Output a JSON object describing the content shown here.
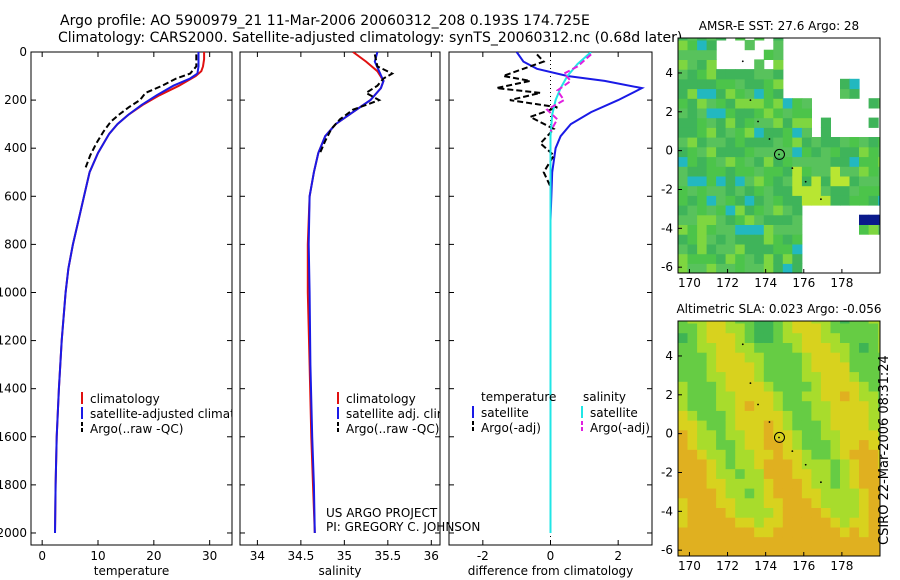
{
  "header": {
    "title_line1": "Argo profile: AO 5900979_21 11-Mar-2006 20060312_208 0.193S 174.725E",
    "title_line2": "Climatology: CARS2000. Satellite-adjusted climatology: synTS_20060312.nc (0.68d later)"
  },
  "footer_stamp": "CSIRO 22-Mar-2006 08:31:24",
  "credit": {
    "line1": "US ARGO PROJECT",
    "line2": "PI: GREGORY C. JOHNSON"
  },
  "colors": {
    "climatology": "#e01010",
    "satellite": "#1a1ae6",
    "argo": "#000000",
    "satellite_salinity": "#20e6e6",
    "argo_salinity": "#e020e0"
  },
  "chart_data": [
    {
      "type": "line",
      "id": "temperature",
      "xlabel": "temperature",
      "ylabel": "",
      "xlim": [
        -2,
        34
      ],
      "ylim": [
        2050,
        0
      ],
      "xticks": [
        0,
        10,
        20,
        30
      ],
      "yticks": [
        0,
        200,
        400,
        600,
        800,
        1000,
        1200,
        1400,
        1600,
        1800,
        2000
      ],
      "legend": {
        "placement": "lower-right",
        "entries": [
          "climatology",
          "satellite-adjusted climatology",
          "Argo(..raw -QC)"
        ]
      },
      "series": [
        {
          "name": "climatology",
          "color": "#e01010",
          "dash": "none",
          "x": [
            29.0,
            29.0,
            28.8,
            28.5,
            27.5,
            24.5,
            21.0,
            18.0,
            15.5,
            13.5,
            12.0,
            10.0,
            8.5,
            7.5,
            6.5,
            5.5,
            4.7,
            4.2,
            3.5,
            3.0,
            2.6,
            2.4,
            2.3
          ],
          "y": [
            0,
            30,
            60,
            80,
            100,
            140,
            180,
            220,
            260,
            300,
            340,
            420,
            500,
            600,
            700,
            800,
            900,
            1000,
            1200,
            1400,
            1600,
            1800,
            2000
          ]
        },
        {
          "name": "satellite-adjusted climatology",
          "color": "#1a1ae6",
          "dash": "none",
          "x": [
            28.0,
            28.0,
            27.8,
            26.5,
            23.5,
            20.5,
            17.8,
            15.5,
            13.5,
            12.0,
            10.0,
            8.5,
            7.5,
            6.5,
            5.5,
            4.7,
            4.2,
            3.5,
            3.0,
            2.6,
            2.4,
            2.3
          ],
          "y": [
            0,
            60,
            90,
            110,
            140,
            180,
            220,
            260,
            300,
            340,
            420,
            500,
            600,
            700,
            800,
            900,
            1000,
            1200,
            1400,
            1600,
            1800,
            2000
          ]
        },
        {
          "name": "Argo(..raw -QC)",
          "color": "#000000",
          "dash": "6,3",
          "x": [
            27.6,
            27.6,
            26.5,
            24.0,
            21.5,
            18.5,
            17.5,
            15.5,
            13.8,
            12.3,
            11.0,
            9.7,
            8.6,
            7.8
          ],
          "y": [
            10,
            60,
            90,
            110,
            140,
            170,
            200,
            230,
            260,
            290,
            330,
            380,
            430,
            480
          ]
        }
      ]
    },
    {
      "type": "line",
      "id": "salinity",
      "xlabel": "salinity",
      "ylabel": "",
      "xlim": [
        33.8,
        36.1
      ],
      "ylim": [
        2050,
        0
      ],
      "xticks": [
        34,
        34.5,
        35,
        35.5,
        36
      ],
      "xticklabels": [
        "34",
        "34.5",
        "35",
        "35.5",
        "36"
      ],
      "legend": {
        "placement": "lower-right",
        "entries": [
          "climatology",
          "satellite adj. clim.",
          "Argo(..raw -QC)"
        ]
      },
      "series": [
        {
          "name": "climatology",
          "color": "#e01010",
          "dash": "none",
          "x": [
            35.1,
            35.25,
            35.38,
            35.45,
            35.42,
            35.3,
            35.1,
            34.9,
            34.78,
            34.7,
            34.65,
            34.6,
            34.58,
            34.58,
            34.6,
            34.62,
            34.64,
            34.66
          ],
          "y": [
            0,
            40,
            80,
            120,
            150,
            200,
            250,
            300,
            350,
            420,
            500,
            600,
            800,
            1000,
            1300,
            1600,
            1800,
            2000
          ]
        },
        {
          "name": "satellite adj. clim.",
          "color": "#1a1ae6",
          "dash": "none",
          "x": [
            35.38,
            35.35,
            35.4,
            35.45,
            35.42,
            35.3,
            35.1,
            34.9,
            34.78,
            34.7,
            34.65,
            34.6,
            34.59,
            34.6,
            34.61,
            34.63,
            34.65,
            34.66
          ],
          "y": [
            0,
            40,
            80,
            120,
            150,
            200,
            250,
            300,
            350,
            420,
            500,
            600,
            800,
            1000,
            1300,
            1600,
            1800,
            2000
          ]
        },
        {
          "name": "Argo(..raw -QC)",
          "color": "#000000",
          "dash": "6,3",
          "x": [
            35.35,
            35.38,
            35.55,
            35.45,
            35.38,
            35.25,
            35.4,
            35.1,
            34.95,
            34.85,
            34.78,
            34.72
          ],
          "y": [
            10,
            60,
            90,
            110,
            140,
            170,
            200,
            240,
            280,
            320,
            370,
            420
          ]
        }
      ]
    },
    {
      "type": "line",
      "id": "difference",
      "xlabel": "difference from climatology",
      "ylabel": "",
      "xlim": [
        -3.0,
        3.0
      ],
      "ylim": [
        2050,
        0
      ],
      "xticks": [
        -2,
        0,
        2
      ],
      "legend": {
        "placement": "lower-center",
        "columns": [
          {
            "heading": "temperature",
            "entries": [
              "satellite",
              "Argo(-adj)"
            ]
          },
          {
            "heading": "salinity",
            "entries": [
              "satellite",
              "Argo(-adj)"
            ]
          }
        ]
      },
      "series": [
        {
          "name": "temperature satellite",
          "color": "#1a1ae6",
          "dash": "none",
          "x": [
            -1.0,
            -0.8,
            -0.4,
            0.5,
            1.6,
            2.7,
            2.0,
            1.2,
            0.6,
            0.3,
            0.15,
            0.05,
            0.0,
            0.0
          ],
          "y": [
            0,
            40,
            70,
            100,
            120,
            150,
            200,
            250,
            300,
            350,
            400,
            500,
            700,
            2000
          ]
        },
        {
          "name": "temperature Argo(-adj)",
          "color": "#000000",
          "dash": "6,3",
          "x": [
            -0.4,
            -0.2,
            -0.8,
            -1.4,
            -0.6,
            -1.6,
            -0.3,
            -1.2,
            0.2,
            -0.6,
            0.1,
            -0.3,
            0.1,
            -0.2,
            0.0
          ],
          "y": [
            10,
            40,
            70,
            100,
            120,
            150,
            170,
            200,
            230,
            270,
            320,
            380,
            430,
            500,
            560
          ]
        },
        {
          "name": "salinity satellite",
          "color": "#20e6e6",
          "dash": "none",
          "x": [
            1.2,
            0.8,
            0.5,
            0.3,
            0.15,
            0.05,
            0.0,
            0.0,
            0.0
          ],
          "y": [
            0,
            50,
            100,
            150,
            200,
            260,
            350,
            600,
            2000
          ]
        },
        {
          "name": "salinity Argo(-adj)",
          "color": "#e020e0",
          "dash": "6,3",
          "x": [
            1.2,
            0.8,
            0.4,
            0.6,
            0.2,
            0.4,
            -0.1,
            0.2,
            0.0
          ],
          "y": [
            10,
            60,
            90,
            120,
            160,
            200,
            240,
            280,
            330
          ]
        }
      ]
    },
    {
      "type": "heatmap",
      "id": "sst_map",
      "title": "AMSR-E SST: 27.6 Argo: 28",
      "xlim": [
        169.4,
        180
      ],
      "ylim": [
        -6.3,
        5.8
      ],
      "xticks": [
        170,
        172,
        174,
        176,
        178
      ],
      "yticks": [
        -6,
        -4,
        -2,
        0,
        2,
        4
      ],
      "marker": {
        "lon": 174.725,
        "lat": -0.193
      }
    },
    {
      "type": "heatmap",
      "id": "sla_map",
      "title": "Altimetric SLA: 0.023 Argo: -0.056",
      "xlim": [
        169.4,
        180
      ],
      "ylim": [
        -6.3,
        5.8
      ],
      "xticks": [
        170,
        172,
        174,
        176,
        178
      ],
      "yticks": [
        -6,
        -4,
        -2,
        0,
        2,
        4
      ],
      "marker": {
        "lon": 174.725,
        "lat": -0.193
      }
    }
  ]
}
